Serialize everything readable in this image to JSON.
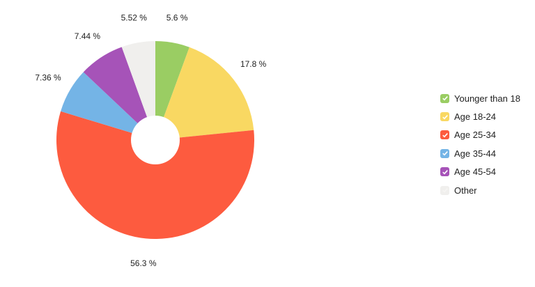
{
  "chart_data": {
    "type": "pie",
    "variant": "donut",
    "title": "",
    "categories": [
      "Younger than 18",
      "Age 18-24",
      "Age 25-34",
      "Age 35-44",
      "Age 45-54",
      "Other"
    ],
    "values": [
      5.6,
      17.8,
      56.3,
      7.36,
      7.44,
      5.52
    ],
    "labels": [
      "5.6 %",
      "17.8 %",
      "56.3 %",
      "7.36 %",
      "7.44 %",
      "5.52 %"
    ],
    "colors": [
      "#9acd63",
      "#f9d862",
      "#fd5b3f",
      "#74b4e6",
      "#a653b8",
      "#f0efed"
    ],
    "legend_position": "right",
    "start_angle_deg": 0,
    "direction": "clockwise"
  },
  "legend": {
    "items": [
      {
        "label": "Younger than 18",
        "color": "#9acd63",
        "checked": true
      },
      {
        "label": "Age 18-24",
        "color": "#f9d862",
        "checked": true
      },
      {
        "label": "Age 25-34",
        "color": "#fd5b3f",
        "checked": true
      },
      {
        "label": "Age 35-44",
        "color": "#74b4e6",
        "checked": true
      },
      {
        "label": "Age 45-54",
        "color": "#a653b8",
        "checked": true
      },
      {
        "label": "Other",
        "color": "#f0efed",
        "checked": true
      }
    ]
  }
}
